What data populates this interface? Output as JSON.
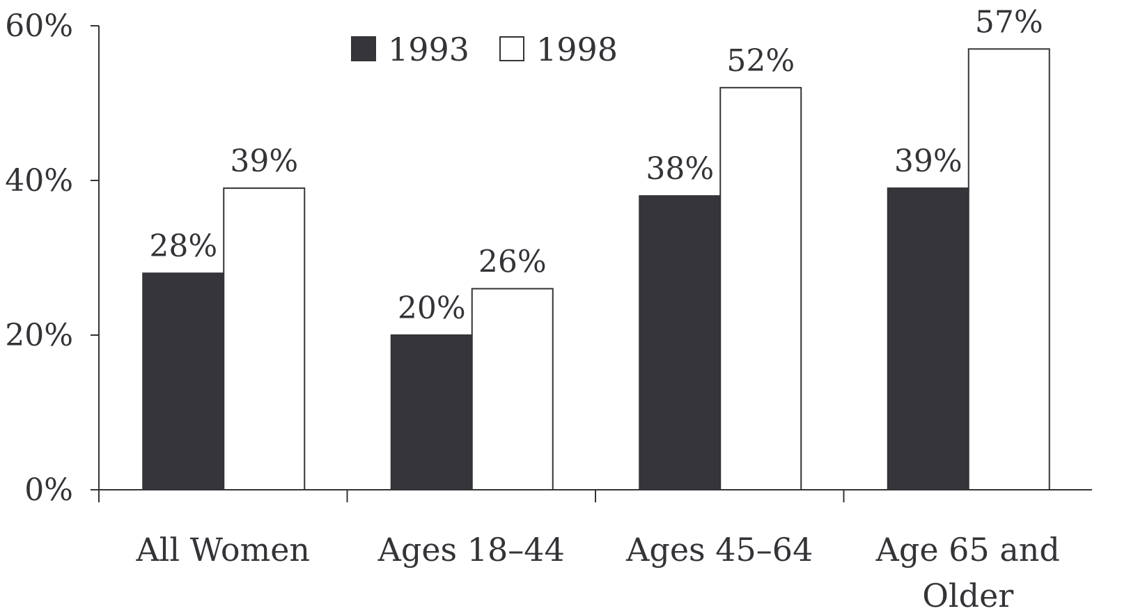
{
  "chart_data": {
    "type": "bar",
    "categories": [
      [
        "All Women"
      ],
      [
        "Ages 18–44"
      ],
      [
        "Ages 45–64"
      ],
      [
        "Age 65 and",
        "Older"
      ]
    ],
    "series": [
      {
        "name": "1993",
        "values": [
          28,
          20,
          38,
          39
        ],
        "data_labels": [
          "28%",
          "20%",
          "38%",
          "39%"
        ],
        "color": "#363539"
      },
      {
        "name": "1998",
        "values": [
          39,
          26,
          52,
          57
        ],
        "data_labels": [
          "39%",
          "26%",
          "52%",
          "57%"
        ],
        "color": "#ffffff"
      }
    ],
    "ylim": [
      0,
      60
    ],
    "yticks": [
      0,
      20,
      40,
      60
    ],
    "ytick_labels": [
      "0%",
      "20%",
      "40%",
      "60%"
    ],
    "grid": false,
    "legend_position": "top-center",
    "axis_color": "#333338"
  }
}
